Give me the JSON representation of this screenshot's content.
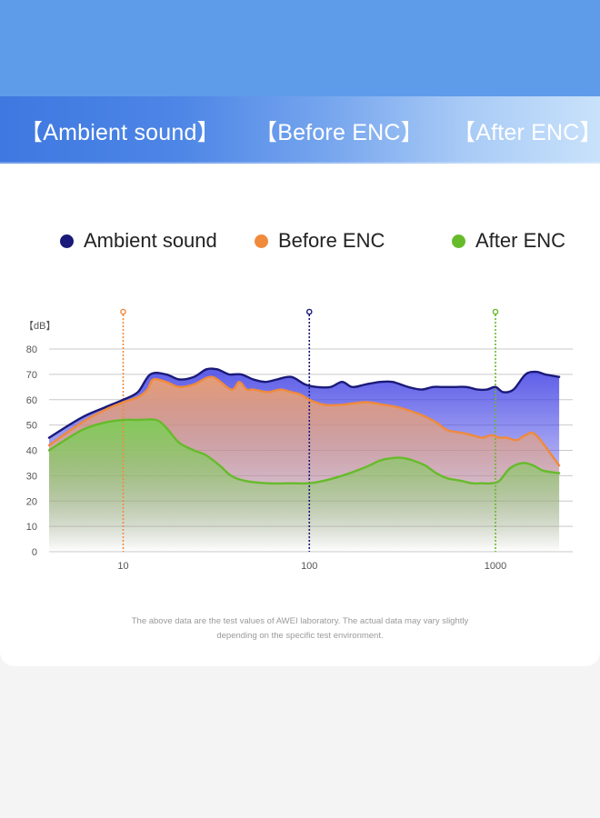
{
  "tabs": [
    {
      "label": "【Ambient sound】"
    },
    {
      "label": "【Before ENC】"
    },
    {
      "label": "【After ENC】"
    }
  ],
  "legend": [
    {
      "label": "Ambient sound",
      "color": "#1a1a7a"
    },
    {
      "label": "Before ENC",
      "color": "#f08a3c"
    },
    {
      "label": "After ENC",
      "color": "#66bb2a"
    }
  ],
  "footnote": {
    "line1": "The above data are the test values of AWEI laboratory. The actual data may vary slightly",
    "line2": "depending on the specific test environment."
  },
  "chart_data": {
    "type": "area",
    "ylabel": "【dB】",
    "xscale": "log",
    "xlim": [
      4,
      2600
    ],
    "ylim": [
      0,
      80
    ],
    "yticks": [
      0,
      10,
      20,
      30,
      40,
      50,
      60,
      70,
      80
    ],
    "xticks": [
      10,
      100,
      1000
    ],
    "grid": "horizontal",
    "markers": [
      {
        "x": 10,
        "color": "#f08a3c"
      },
      {
        "x": 100,
        "color": "#1a1a7a"
      },
      {
        "x": 1000,
        "color": "#66bb2a"
      }
    ],
    "series": [
      {
        "name": "Ambient sound",
        "color": "#1a1a7a",
        "fill": "#4a4ae6",
        "x": [
          4,
          6,
          8,
          10,
          12,
          14,
          17,
          20,
          24,
          28,
          32,
          37,
          43,
          50,
          58,
          67,
          80,
          95,
          110,
          130,
          150,
          170,
          200,
          240,
          280,
          340,
          400,
          460,
          520,
          600,
          700,
          800,
          900,
          1000,
          1100,
          1250,
          1450,
          1650,
          1850,
          2200
        ],
        "y": [
          45,
          53,
          57,
          60,
          63,
          70,
          70,
          68,
          69,
          72,
          72,
          70,
          70,
          68,
          67,
          68,
          69,
          66,
          65,
          65,
          67,
          65,
          66,
          67,
          67,
          65,
          64,
          65,
          65,
          65,
          65,
          64,
          64,
          65,
          63,
          64,
          70,
          71,
          70,
          69
        ]
      },
      {
        "name": "Before ENC",
        "color": "#f08a3c",
        "fill": "#f4a46a",
        "x": [
          4,
          6,
          8,
          10,
          12,
          13.5,
          14.5,
          17,
          20,
          24,
          30,
          38,
          42,
          46,
          50,
          60,
          70,
          80,
          90,
          100,
          120,
          150,
          200,
          250,
          300,
          400,
          480,
          550,
          650,
          750,
          850,
          950,
          1050,
          1150,
          1300,
          1450,
          1650,
          2200
        ],
        "y": [
          42,
          51,
          56,
          59,
          61,
          64,
          68,
          67,
          65,
          66,
          69,
          64,
          67,
          64,
          64,
          63,
          64,
          63,
          62,
          60,
          58,
          58,
          59,
          58,
          57,
          54,
          51,
          48,
          47,
          46,
          45,
          46,
          45,
          45,
          44,
          46,
          46,
          34
        ]
      },
      {
        "name": "After ENC",
        "color": "#66bb2a",
        "fill": "#7bcf55",
        "x": [
          4,
          6,
          8,
          10,
          12,
          15,
          17,
          20,
          24,
          28,
          33,
          38,
          45,
          60,
          80,
          100,
          120,
          150,
          180,
          210,
          240,
          280,
          320,
          360,
          420,
          480,
          550,
          650,
          750,
          850,
          950,
          1050,
          1200,
          1400,
          1600,
          1800,
          2200
        ],
        "y": [
          40,
          48,
          51,
          52,
          52,
          52,
          49,
          43,
          40,
          38,
          34,
          30,
          28,
          27,
          27,
          27,
          28,
          30,
          32,
          34,
          36,
          37,
          37,
          36,
          34,
          31,
          29,
          28,
          27,
          27,
          27,
          28,
          33,
          35,
          34,
          32,
          31
        ]
      }
    ]
  }
}
